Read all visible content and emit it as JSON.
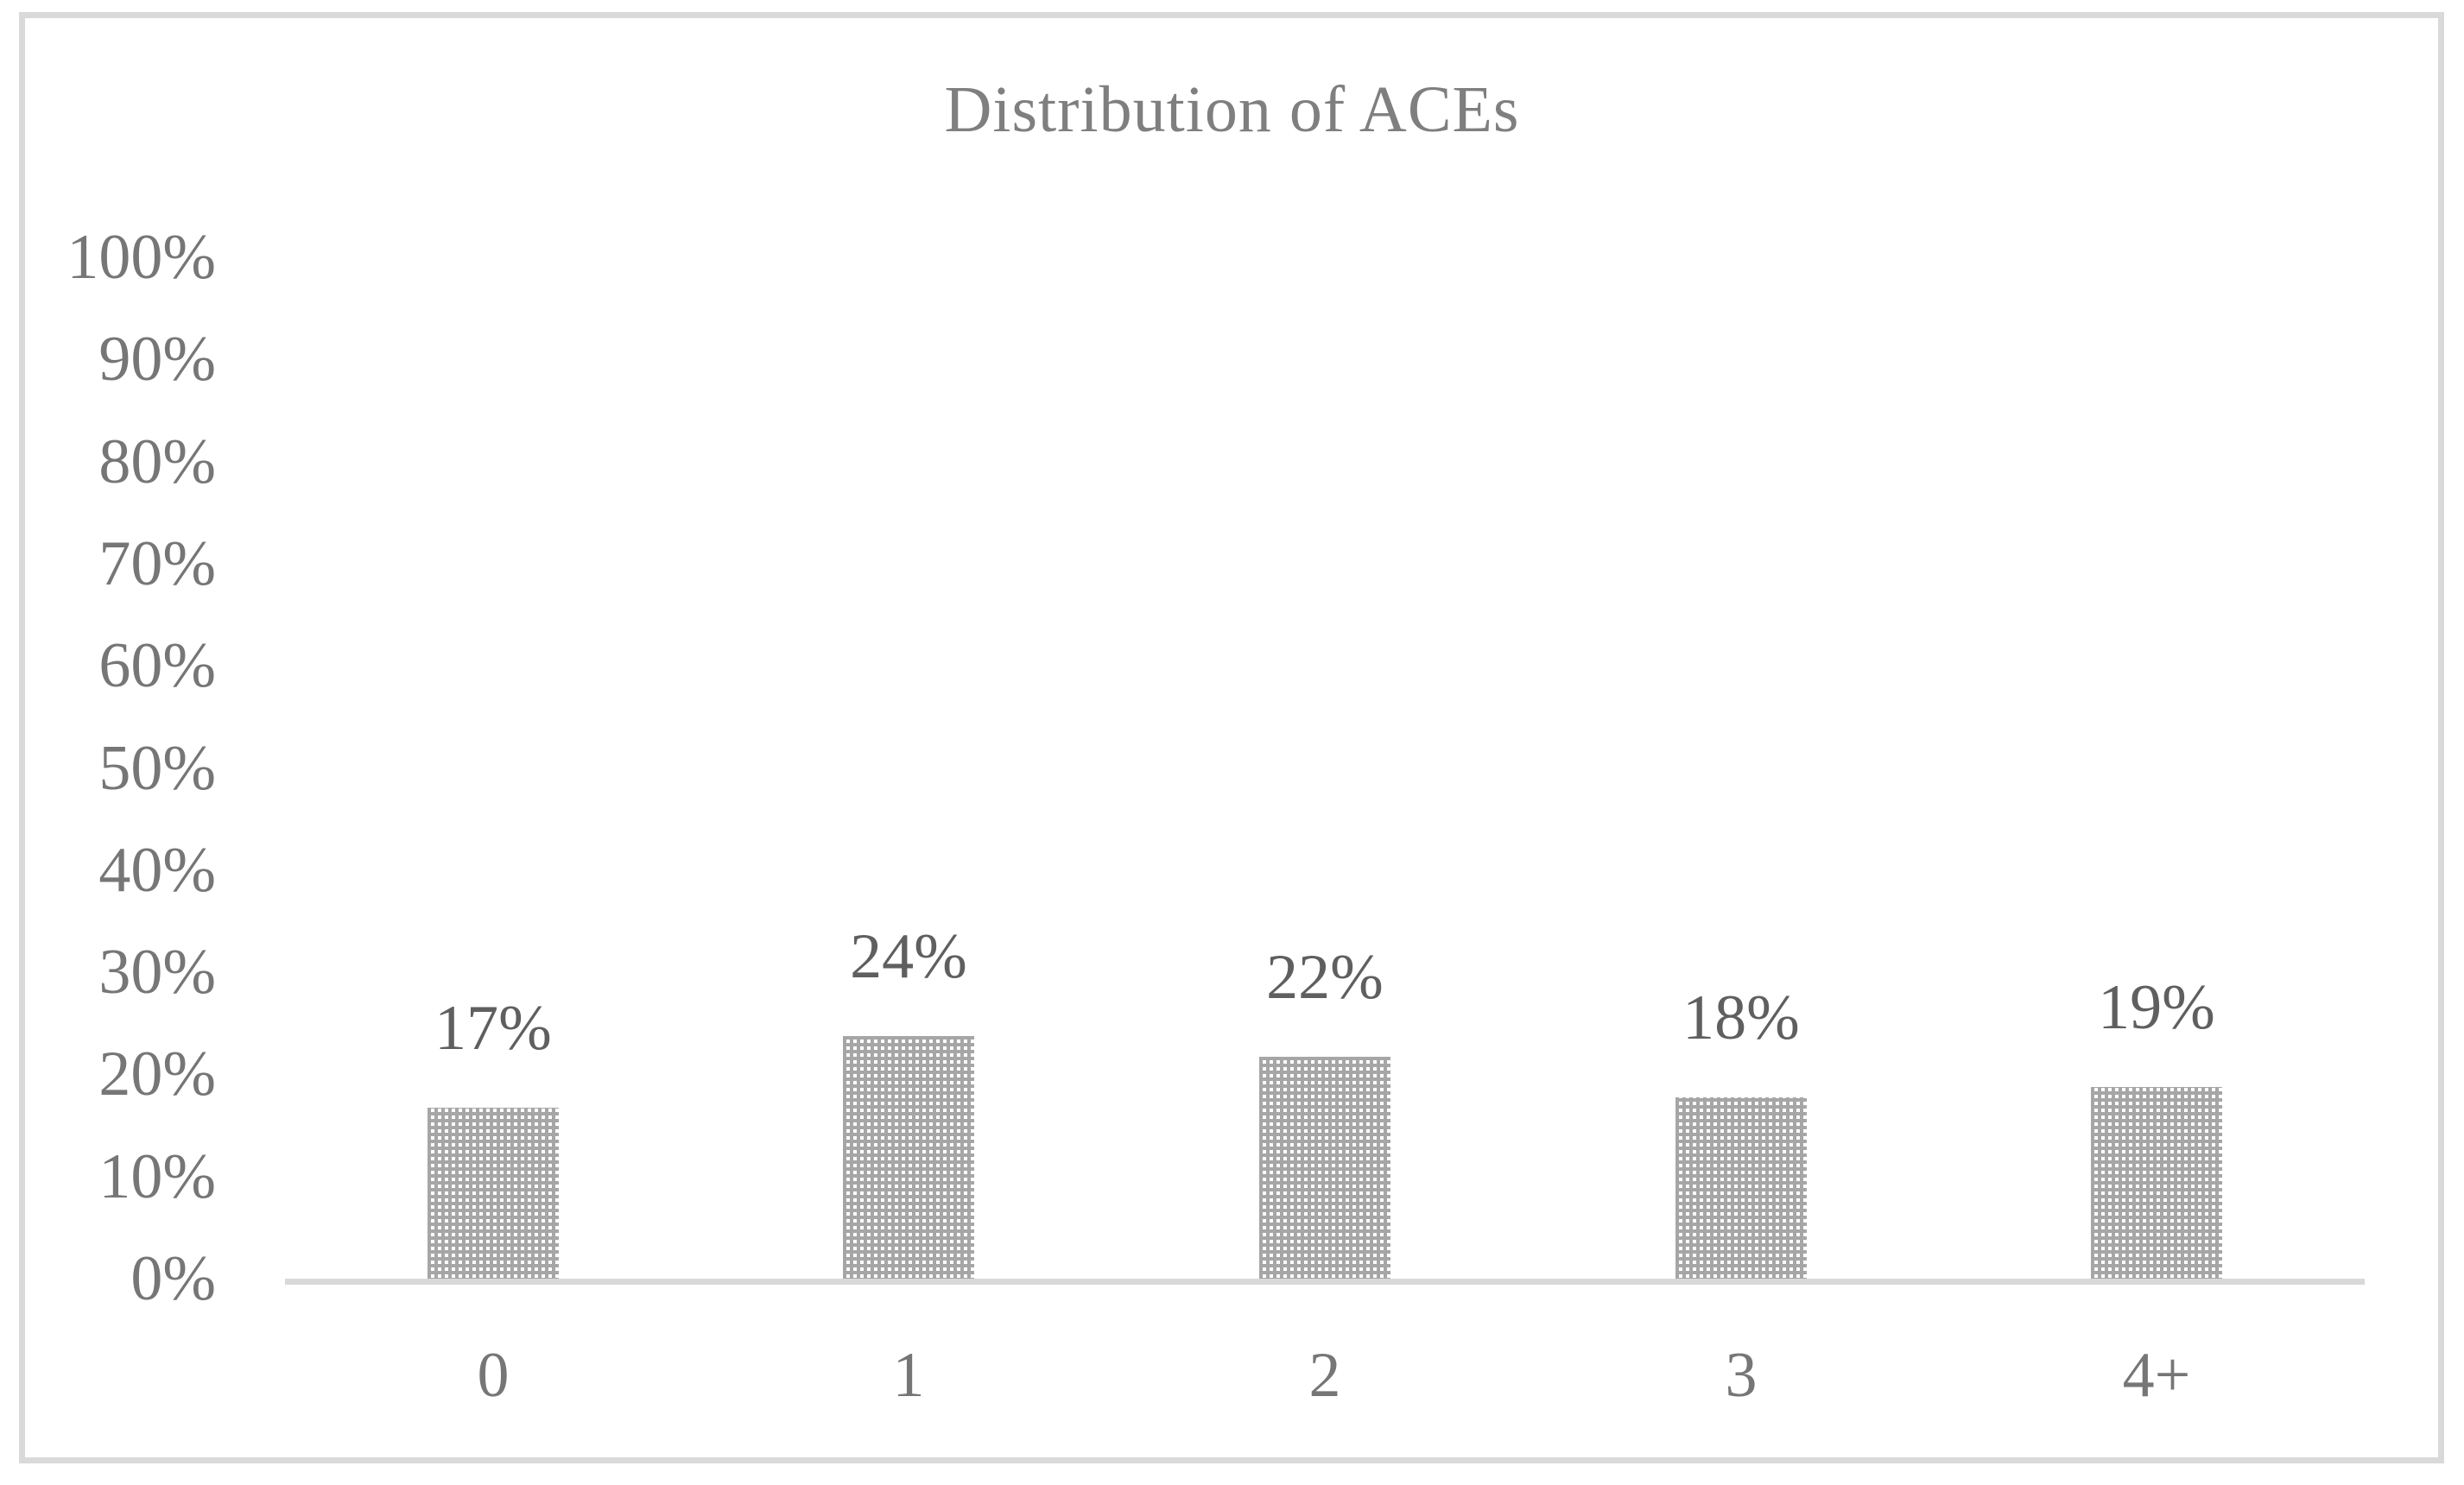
{
  "chart_data": {
    "type": "bar",
    "title": "Distribution of ACEs",
    "categories": [
      "0",
      "1",
      "2",
      "3",
      "4+"
    ],
    "values": [
      17,
      24,
      22,
      18,
      19
    ],
    "value_labels": [
      "17%",
      "24%",
      "22%",
      "18%",
      "19%"
    ],
    "xlabel": "",
    "ylabel": "",
    "ylim": [
      0,
      100
    ],
    "y_tick_step": 10,
    "y_tick_labels": [
      "0%",
      "10%",
      "20%",
      "30%",
      "40%",
      "50%",
      "60%",
      "70%",
      "80%",
      "90%",
      "100%"
    ],
    "grid": false,
    "legend": "none",
    "data_labels_shown": true,
    "colors": {
      "title_text": "#7f7f7f",
      "tick_text": "#767676",
      "value_label_text": "#5f5f5f",
      "axis_line": "#d9d9d9",
      "frame_border": "#d9d9d9",
      "bar_pattern": "#a6a6a6",
      "background": "#ffffff"
    }
  }
}
